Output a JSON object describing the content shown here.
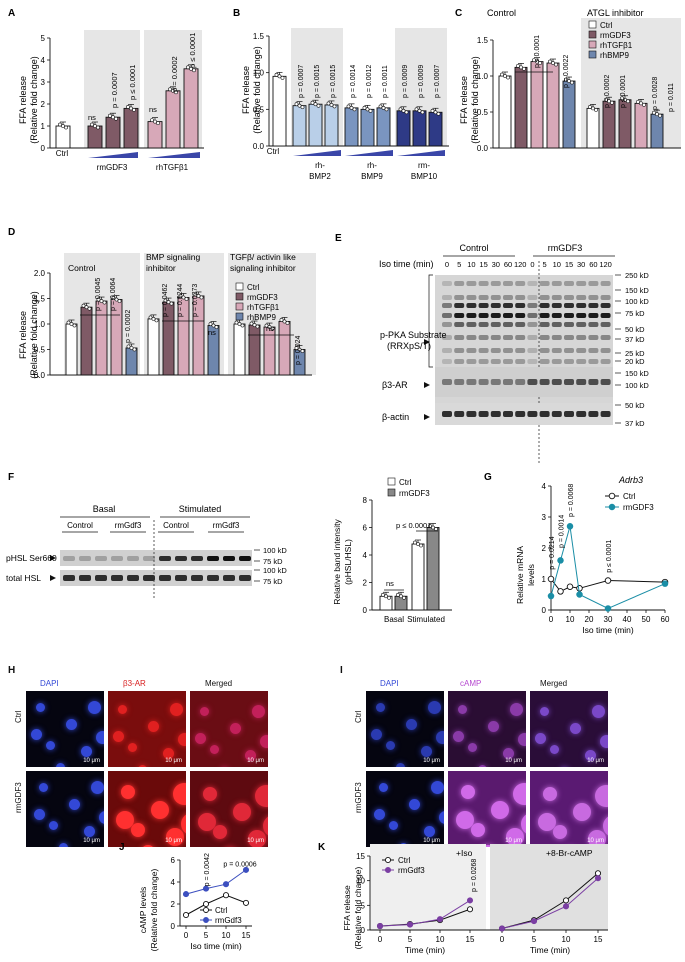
{
  "colors": {
    "ctrl": "#ffffff",
    "gdf3": "#7f5a66",
    "tgfb1": "#d7a8b8",
    "bmp9": "#6e86ad",
    "bmp2": "#b9cfe8",
    "bmp9_b": "#7a95c0",
    "bmp10": "#2e3a86",
    "ramp": "#3a46a8",
    "gray_bg": "#e6e6e6",
    "teal": "#1b8ea6",
    "purple": "#7b3fa3",
    "blue": "#3c4fbf",
    "red_micro": "#d82020",
    "magenta_micro": "#b64ad0",
    "blue_micro": "#3348d6"
  },
  "panelA": {
    "letter": "A",
    "ylabel1": "FFA release",
    "ylabel2": "(Relative fold change)",
    "yticks": [
      "0",
      "1",
      "2",
      "3",
      "4",
      "5"
    ],
    "ctrl": "Ctrl",
    "g1": "rmGDF3",
    "g2": "rhTGFβ1",
    "ns1": "ns",
    "ns2": "ns",
    "pvals": [
      "p = 0.0007",
      "p ≤ 0.0001",
      "p = 0.0002",
      "p ≤ 0.0001"
    ]
  },
  "panelB": {
    "letter": "B",
    "ylabel1": "FFA release",
    "ylabel2": "(Relative fold change)",
    "yticks": [
      "0.0",
      "0.5",
      "1.0",
      "1.5"
    ],
    "ctrl": "Ctrl",
    "g1a": "rh-",
    "g1b": "BMP2",
    "g2a": "rh-",
    "g2b": "BMP9",
    "g3a": "rm-",
    "g3b": "BMP10",
    "pvals": [
      "p = 0.0007",
      "p = 0.0015",
      "p = 0.0015",
      "p = 0.0014",
      "p = 0.0012",
      "p = 0.0011",
      "p = 0.0009",
      "p = 0.0009",
      "p = 0.0007"
    ]
  },
  "panelC": {
    "letter": "C",
    "ylabel1": "FFA release",
    "ylabel2": "(Relative fold change)",
    "yticks": [
      "0.0",
      "0.5",
      "1.0",
      "1.5"
    ],
    "region1": "Control",
    "region2": "ATGL inhibitor",
    "legend": [
      "Ctrl",
      "rmGDF3",
      "rhTGFβ1",
      "rhBMP9"
    ],
    "pvals": [
      "p ≤ 0.0001",
      "p = 0.0022",
      "p = 0.0002",
      "p ≤ 0.0001",
      "p = 0.0028",
      "p = 0.011"
    ]
  },
  "panelD": {
    "letter": "D",
    "ylabel1": "FFA release",
    "ylabel2": "(Relative fold change)",
    "yticks": [
      "0.0",
      "0.5",
      "1.0",
      "1.5",
      "2.0"
    ],
    "region1": "Control",
    "region2a": "BMP signaling",
    "region2b": "inhibitor",
    "region3a": "TGFβ/ activin like",
    "region3b": "signaling inhibitor",
    "legend": [
      "Ctrl",
      "rmGDF3",
      "rhTGFβ1",
      "rhBMP9"
    ],
    "pvals": [
      "p = 0.0045",
      "p = 0.0064",
      "p = 0.0002",
      "p = 0.0462",
      "p = 0.0244",
      "p = 0.0273",
      "p = 0.024"
    ],
    "ns1": "ns",
    "ns2": "ns"
  },
  "panelE": {
    "letter": "E",
    "group1": "Control",
    "group2": "rmGDF3",
    "iso_label": "Iso time (min)",
    "times": [
      "0",
      "5",
      "10",
      "15",
      "30",
      "60",
      "120",
      "0",
      "5",
      "10",
      "15",
      "30",
      "60",
      "120"
    ],
    "blot1a": "p-PKA Substrate",
    "blot1b": "(RRXpS/T)",
    "blot2": "β3-AR",
    "blot3": "β-actin",
    "markers1": [
      "250 kD",
      "150 kD",
      "100 kD",
      "75 kD",
      "50 kD",
      "37 kD",
      "25 kD",
      "20 kD"
    ],
    "markers2": [
      "150 kD",
      "100 kD"
    ],
    "markers3": [
      "50 kD",
      "37 kD"
    ]
  },
  "panelF": {
    "letter": "F",
    "basal": "Basal",
    "stimulated": "Stimulated",
    "lanes": [
      "Control",
      "rmGdf3",
      "Control",
      "rmGdf3"
    ],
    "row1": "pHSL Ser660",
    "row2": "total HSL",
    "markers1": [
      "100 kD",
      "75 kD"
    ],
    "markers2": [
      "100 kD",
      "75 kD"
    ],
    "legend": [
      "Ctrl",
      "rmGDF3"
    ],
    "ylabel1": "Relative band intensity",
    "ylabel2": "(pHSL/HSL)",
    "yticks": [
      "0",
      "2",
      "4",
      "6",
      "8"
    ],
    "xcats": [
      "Basal",
      "Stimulated"
    ],
    "ns": "ns",
    "pval": "p ≤ 0.0001"
  },
  "panelG": {
    "letter": "G",
    "gene": "Adrb3",
    "legend": [
      "Ctrl",
      "rmGDF3"
    ],
    "ylabel1": "Relative mRNA",
    "ylabel2": "levels",
    "xlabel": "Iso time (min)",
    "yticks": [
      "0",
      "1",
      "2",
      "3",
      "4"
    ],
    "xticks": [
      "0",
      "10",
      "20",
      "30",
      "40",
      "50",
      "60"
    ],
    "pvals": [
      "p = 0.0214",
      "p = 0.0014",
      "p = 0.0068",
      "p ≤ 0.0001"
    ]
  },
  "panelH": {
    "letter": "H",
    "cols": [
      "DAPI",
      "β3-AR",
      "Merged"
    ],
    "rows": [
      "Ctrl",
      "rmGDF3"
    ],
    "scale": "10 μm"
  },
  "panelI": {
    "letter": "I",
    "cols": [
      "DAPI",
      "cAMP",
      "Merged"
    ],
    "rows": [
      "Ctrl",
      "rmGDF3"
    ],
    "scale": "10 μm"
  },
  "panelJ": {
    "letter": "J",
    "ylabel1": "cAMP levels",
    "ylabel2": "(Relative fold change)",
    "xlabel": "Iso time (min)",
    "yticks": [
      "0",
      "2",
      "4",
      "6"
    ],
    "xticks": [
      "0",
      "5",
      "10",
      "15"
    ],
    "legend": [
      "Ctrl",
      "rmGdf3"
    ],
    "pvals": [
      "p = 0.0042",
      "p = 0.0006"
    ]
  },
  "panelK": {
    "letter": "K",
    "region1": "+Iso",
    "region2": "+8-Br-cAMP",
    "ylabel1": "FFA release",
    "ylabel2": "(Relative fold change)",
    "xlabel": "Time (min)",
    "yticks": [
      "0",
      "5",
      "10",
      "15"
    ],
    "xticks": [
      "0",
      "5",
      "10",
      "15"
    ],
    "legend": [
      "Ctrl",
      "rmGdf3"
    ],
    "pval": "p = 0.0268"
  },
  "chart_data": [
    {
      "panel": "A",
      "type": "bar",
      "categories": [
        "Ctrl",
        "rmGDF3-1",
        "rmGDF3-2",
        "rmGDF3-3",
        "rhTGFβ1-1",
        "rhTGFβ1-2",
        "rhTGFβ1-3"
      ],
      "values": [
        1.0,
        1.0,
        1.4,
        1.8,
        1.2,
        2.6,
        3.6
      ],
      "ylim": [
        0,
        5
      ]
    },
    {
      "panel": "B",
      "type": "bar",
      "categories": [
        "Ctrl",
        "rh-BMP2-1",
        "rh-BMP2-2",
        "rh-BMP2-3",
        "rh-BMP9-1",
        "rh-BMP9-2",
        "rh-BMP9-3",
        "rm-BMP10-1",
        "rm-BMP10-2",
        "rm-BMP10-3"
      ],
      "values": [
        0.95,
        0.55,
        0.57,
        0.56,
        0.52,
        0.5,
        0.52,
        0.48,
        0.48,
        0.46
      ],
      "ylim": [
        0,
        1.5
      ]
    },
    {
      "panel": "C",
      "type": "bar",
      "series": [
        {
          "name": "Control",
          "values": [
            1.0,
            1.12,
            1.2,
            1.18,
            0.93
          ]
        },
        {
          "name": "ATGL inhibitor",
          "values": [
            0.55,
            0.65,
            0.67,
            0.62,
            0.47
          ]
        }
      ],
      "ylim": [
        0,
        1.5
      ]
    },
    {
      "panel": "D",
      "type": "bar",
      "series": [
        {
          "name": "Control",
          "values": [
            1.0,
            1.33,
            1.45,
            1.48,
            0.53
          ]
        },
        {
          "name": "BMP signaling inhibitor",
          "values": [
            1.1,
            1.43,
            1.52,
            1.55,
            0.97
          ]
        },
        {
          "name": "TGFβ/ activin like signaling inhibitor",
          "values": [
            1.0,
            0.98,
            0.94,
            1.05,
            0.5
          ]
        }
      ],
      "ylim": [
        0,
        2.0
      ]
    },
    {
      "panel": "F",
      "type": "bar",
      "categories": [
        "Basal",
        "Stimulated"
      ],
      "series": [
        {
          "name": "Ctrl",
          "values": [
            1.0,
            4.8
          ]
        },
        {
          "name": "rmGDF3",
          "values": [
            1.0,
            6.0
          ]
        }
      ],
      "ylim": [
        0,
        8
      ]
    },
    {
      "panel": "G",
      "type": "line",
      "x": [
        0,
        5,
        10,
        15,
        30,
        60
      ],
      "series": [
        {
          "name": "Ctrl",
          "values": [
            1.0,
            0.6,
            0.75,
            0.7,
            0.95,
            0.9
          ]
        },
        {
          "name": "rmGDF3",
          "values": [
            0.45,
            1.6,
            2.7,
            0.5,
            0.05,
            0.85
          ]
        }
      ],
      "ylim": [
        0,
        4
      ]
    },
    {
      "panel": "J",
      "type": "line",
      "x": [
        0,
        5,
        10,
        15
      ],
      "series": [
        {
          "name": "Ctrl",
          "values": [
            1.0,
            2.0,
            2.8,
            2.1
          ]
        },
        {
          "name": "rmGdf3",
          "values": [
            2.9,
            3.4,
            3.8,
            5.1
          ]
        }
      ],
      "ylim": [
        0,
        6
      ]
    },
    {
      "panel": "K",
      "type": "line",
      "x": [
        0,
        5,
        10,
        15
      ],
      "series": [
        {
          "name": "Ctrl +Iso",
          "values": [
            0.8,
            1.2,
            2.0,
            4.2
          ]
        },
        {
          "name": "rmGdf3 +Iso",
          "values": [
            0.8,
            1.1,
            2.2,
            6.0
          ]
        },
        {
          "name": "Ctrl +8-Br-cAMP",
          "values": [
            0.3,
            2.0,
            6.0,
            11.5
          ]
        },
        {
          "name": "rmGdf3 +8-Br-cAMP",
          "values": [
            0.3,
            1.8,
            4.8,
            10.5
          ]
        }
      ],
      "ylim": [
        0,
        15
      ]
    }
  ]
}
